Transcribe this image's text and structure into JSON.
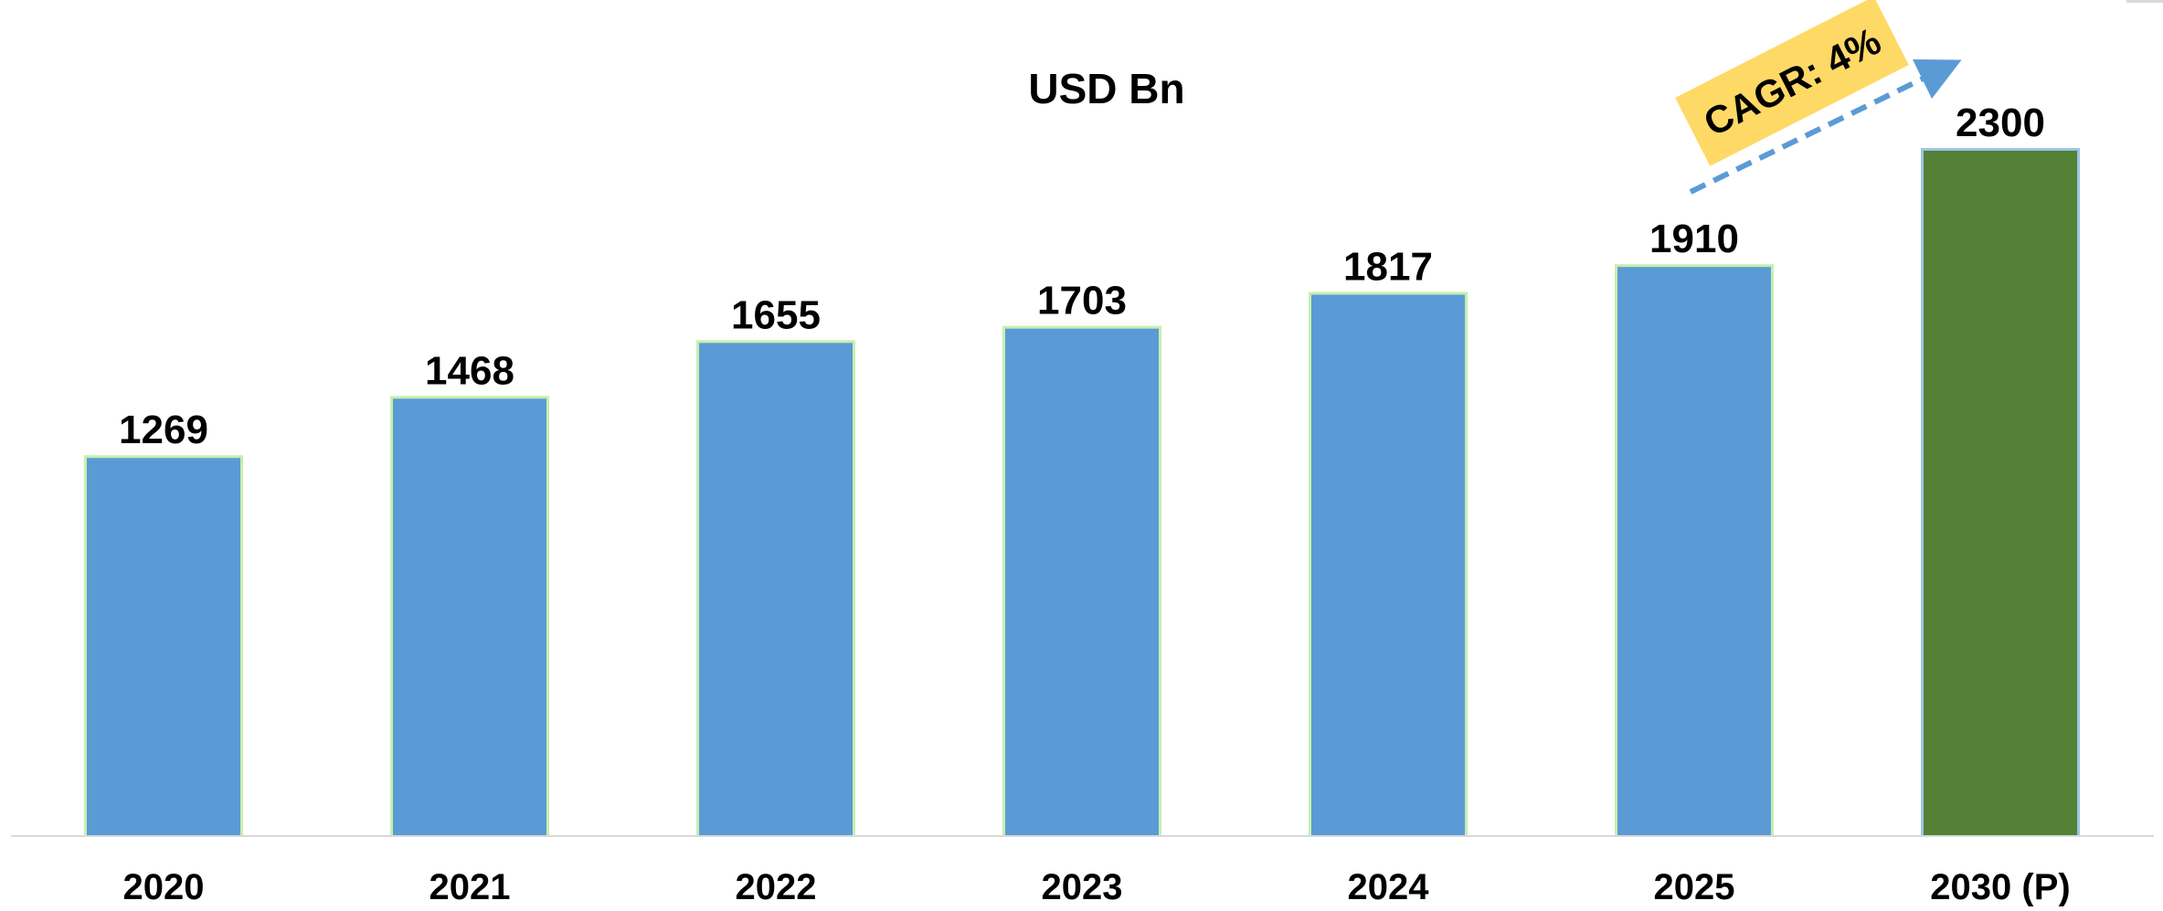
{
  "chart_data": {
    "type": "bar",
    "title": "USD Bn",
    "categories": [
      "2020",
      "2021",
      "2022",
      "2023",
      "2024",
      "2025",
      "2030 (P)"
    ],
    "values": [
      1269,
      1468,
      1655,
      1703,
      1817,
      1910,
      2300
    ],
    "xlabel": "",
    "ylabel": "",
    "ylim": [
      0,
      2300
    ],
    "grid": false,
    "legend": "none",
    "bar_colors": [
      "#5b9bd5",
      "#5b9bd5",
      "#5b9bd5",
      "#5b9bd5",
      "#5b9bd5",
      "#5b9bd5",
      "#538135"
    ],
    "bar_glow_colors": [
      "#c6efb0",
      "#c6efb0",
      "#c6efb0",
      "#c6efb0",
      "#c6efb0",
      "#c6efb0",
      "#9dc3e6"
    ],
    "annotation": {
      "text": "CAGR: 4%",
      "background": "#ffd966",
      "arrow_color": "#5b9bd5"
    }
  }
}
